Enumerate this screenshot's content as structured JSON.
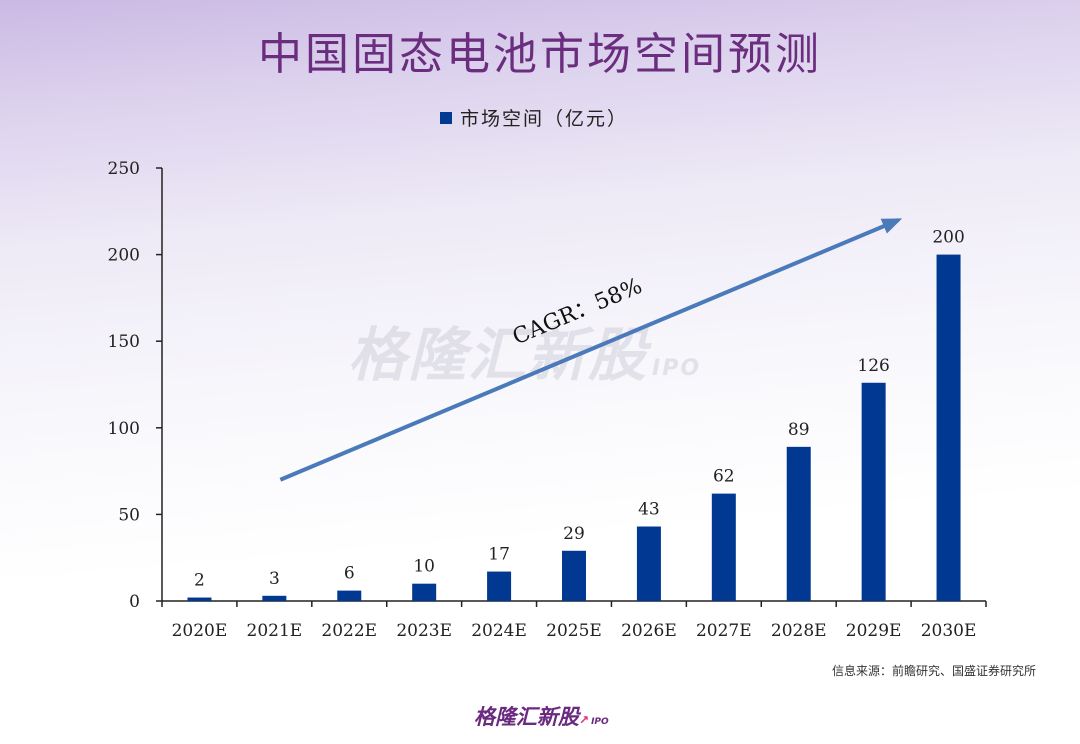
{
  "title": "中国固态电池市场空间预测",
  "watermark": {
    "text": "格隆汇新股",
    "suffix": "IPO"
  },
  "source": "信息来源：前瞻研究、国盛证券研究所",
  "logo": {
    "text": "格隆汇新股",
    "suffix": "IPO"
  },
  "colors": {
    "bar": "#003892",
    "arrow": "#4a7ab9",
    "title": "#6b2d7e"
  },
  "chart_data": {
    "type": "bar",
    "title": "中国固态电池市场空间预测",
    "legend": "市场空间（亿元）",
    "categories": [
      "2020E",
      "2021E",
      "2022E",
      "2023E",
      "2024E",
      "2025E",
      "2026E",
      "2027E",
      "2028E",
      "2029E",
      "2030E"
    ],
    "values": [
      2,
      3,
      6,
      10,
      17,
      29,
      43,
      62,
      89,
      126,
      200
    ],
    "ylim": [
      0,
      250
    ],
    "yticks": [
      0,
      50,
      100,
      150,
      200,
      250
    ],
    "xlabel": "",
    "ylabel": "",
    "annotation": {
      "text": "CAGR：58%",
      "arrow_from": [
        2021,
        70
      ],
      "arrow_to": [
        2030,
        220
      ]
    }
  }
}
